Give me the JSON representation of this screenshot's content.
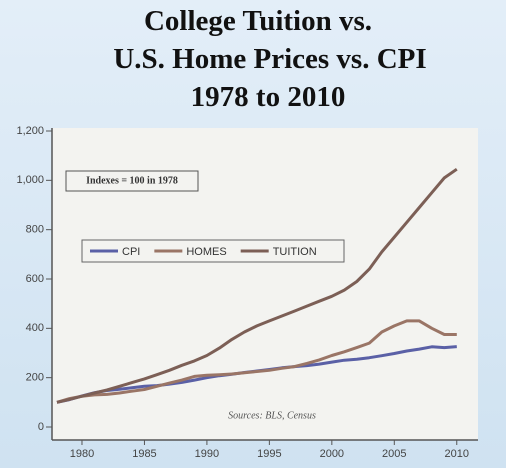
{
  "chart_data": {
    "type": "line",
    "title": [
      "College Tuition vs.",
      "U.S. Home Prices vs. CPI",
      "1978 to 2010"
    ],
    "annotation": "Indexes = 100 in 1978",
    "source": "Sources: BLS, Census",
    "x": [
      1978,
      1979,
      1980,
      1981,
      1982,
      1983,
      1984,
      1985,
      1986,
      1987,
      1988,
      1989,
      1990,
      1991,
      1992,
      1993,
      1994,
      1995,
      1996,
      1997,
      1998,
      1999,
      2000,
      2001,
      2002,
      2003,
      2004,
      2005,
      2006,
      2007,
      2008,
      2009,
      2010
    ],
    "series": [
      {
        "name": "CPI",
        "color": "#5a60a6",
        "values": [
          100,
          111,
          126,
          139,
          148,
          153,
          159,
          165,
          168,
          174,
          181,
          190,
          200,
          208,
          214,
          221,
          227,
          233,
          240,
          245,
          249,
          255,
          263,
          271,
          275,
          281,
          289,
          298,
          308,
          316,
          325,
          322,
          326
        ]
      },
      {
        "name": "HOMES",
        "color": "#9a7566",
        "values": [
          100,
          115,
          125,
          130,
          132,
          138,
          145,
          152,
          165,
          178,
          190,
          205,
          210,
          212,
          215,
          220,
          225,
          230,
          238,
          245,
          258,
          272,
          290,
          305,
          322,
          340,
          385,
          410,
          430,
          430,
          400,
          375,
          375
        ]
      },
      {
        "name": "TUITION",
        "color": "#7c5f56",
        "values": [
          100,
          112,
          125,
          138,
          150,
          165,
          180,
          195,
          212,
          230,
          250,
          268,
          290,
          320,
          355,
          385,
          410,
          430,
          450,
          470,
          490,
          510,
          530,
          555,
          590,
          640,
          710,
          770,
          830,
          890,
          950,
          1010,
          1045
        ]
      }
    ],
    "xlim": [
      1977.6,
      2011.7
    ],
    "xticks": [
      1980,
      1985,
      1990,
      1995,
      2000,
      2005,
      2010
    ],
    "ylim": [
      0,
      1200
    ],
    "yticks": [
      0,
      200,
      400,
      600,
      800,
      {
        "value": 1000,
        "label": "1,000"
      },
      {
        "value": 1200,
        "label": "1,200"
      }
    ]
  }
}
